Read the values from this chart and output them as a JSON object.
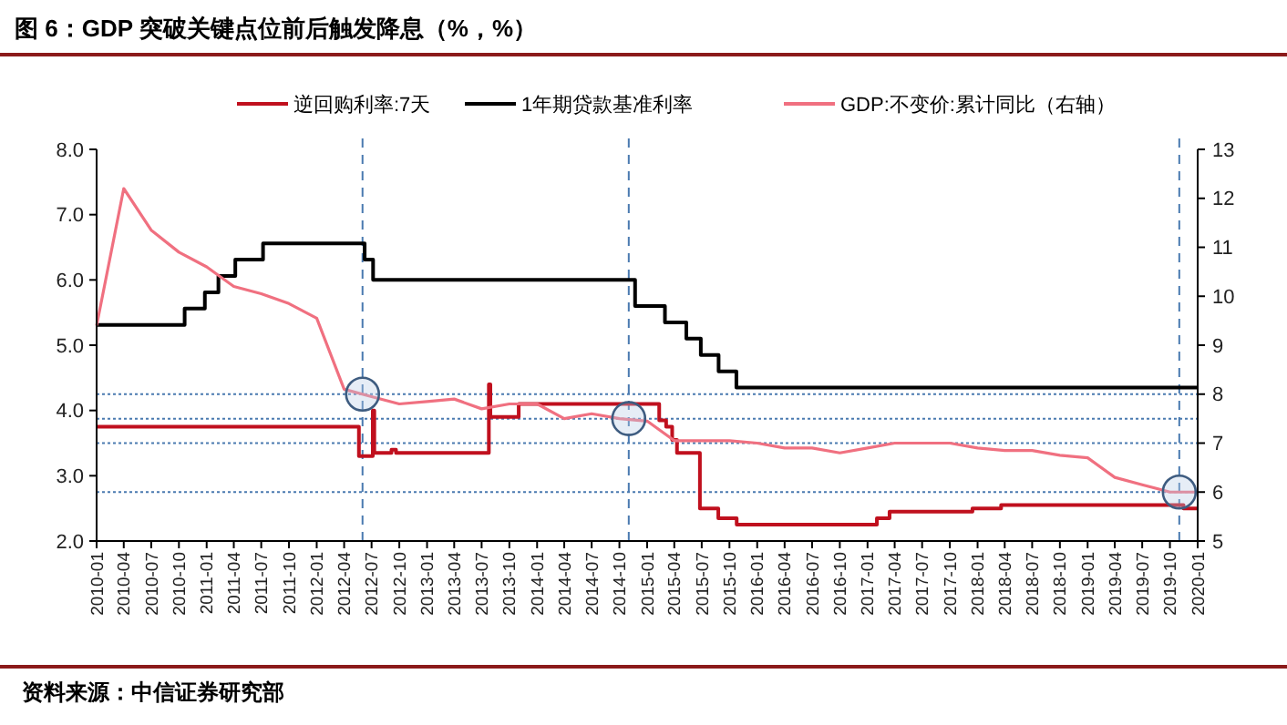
{
  "chart_data": {
    "type": "line",
    "title": "图 6：GDP 突破关键点位前后触发降息（%，%）",
    "annotations": [
      "资料来源：中信证券研究部"
    ],
    "xlim": [
      "2010-01",
      "2020-01"
    ],
    "xticks": [
      "2010-01",
      "2010-04",
      "2010-07",
      "2010-10",
      "2011-01",
      "2011-04",
      "2011-07",
      "2011-10",
      "2012-01",
      "2012-04",
      "2012-07",
      "2012-10",
      "2013-01",
      "2013-04",
      "2013-07",
      "2013-10",
      "2014-01",
      "2014-04",
      "2014-07",
      "2014-10",
      "2015-01",
      "2015-04",
      "2015-07",
      "2015-10",
      "2016-01",
      "2016-04",
      "2016-07",
      "2016-10",
      "2017-01",
      "2017-04",
      "2017-07",
      "2017-10",
      "2018-01",
      "2018-04",
      "2018-07",
      "2018-10",
      "2019-01",
      "2019-04",
      "2019-07",
      "2019-10",
      "2020-01"
    ],
    "ylim": [
      2,
      8
    ],
    "yticks": [
      {
        "value": 2,
        "label": "2.0"
      },
      {
        "value": 3,
        "label": "3.0"
      },
      {
        "value": 4,
        "label": "4.0"
      },
      {
        "value": 5,
        "label": "5.0"
      },
      {
        "value": 6,
        "label": "6.0"
      },
      {
        "value": 7,
        "label": "7.0"
      },
      {
        "value": 8,
        "label": "8.0"
      }
    ],
    "y2lim": [
      5,
      13
    ],
    "y2ticks": [
      5,
      6,
      7,
      8,
      9,
      10,
      11,
      12,
      13
    ],
    "legend": "top",
    "grid": false,
    "ref_lines": [
      {
        "axis": "x",
        "value": "2012-06",
        "color": "#4a7ab0",
        "line_style": "dashed"
      },
      {
        "axis": "x",
        "value": "2014-11",
        "color": "#4a7ab0",
        "line_style": "dashed"
      },
      {
        "axis": "x",
        "value": "2019-11",
        "color": "#4a7ab0",
        "line_style": "dashed"
      },
      {
        "axis": "y2",
        "value": 8,
        "color": "#4a7ab0",
        "line_style": "dotted"
      },
      {
        "axis": "y2",
        "value": 7.5,
        "color": "#4a7ab0",
        "line_style": "dotted"
      },
      {
        "axis": "y2",
        "value": 7,
        "color": "#4a7ab0",
        "line_style": "dotted"
      },
      {
        "axis": "y2",
        "value": 6,
        "color": "#4a7ab0",
        "line_style": "dotted"
      }
    ],
    "series": [
      {
        "name": "逆回购利率:7天",
        "color": "#c0101e",
        "type": "step",
        "x": [
          "2010-01",
          "2012-05-20",
          "2012-07-05",
          "2012-07-10",
          "2012-09-05",
          "2012-09-20",
          "2013-07-25",
          "2013-07-30",
          "2013-11-01",
          "2015-02-10",
          "2015-03-05",
          "2015-03-25",
          "2015-04-10",
          "2015-06-25",
          "2015-08-25",
          "2015-10-25",
          "2017-02-01",
          "2017-03-15",
          "2017-12-15",
          "2018-03-20",
          "2019-11-15",
          "2020-01"
        ],
        "values": [
          3.75,
          3.3,
          4.0,
          3.35,
          3.4,
          3.35,
          4.4,
          3.9,
          4.1,
          3.85,
          3.75,
          3.55,
          3.35,
          2.5,
          2.35,
          2.25,
          2.35,
          2.45,
          2.5,
          2.55,
          2.5,
          2.5
        ]
      },
      {
        "name": "1年期贷款基准利率",
        "color": "#000000",
        "type": "step",
        "x": [
          "2010-01",
          "2010-10-20",
          "2010-12-26",
          "2011-02-09",
          "2011-04-06",
          "2011-07-07",
          "2012-06-08",
          "2012-07-06",
          "2014-11-22",
          "2015-03-01",
          "2015-05-11",
          "2015-06-28",
          "2015-08-26",
          "2015-10-24",
          "2020-01"
        ],
        "values": [
          5.31,
          5.56,
          5.81,
          6.06,
          6.31,
          6.56,
          6.31,
          6.0,
          5.6,
          5.35,
          5.1,
          4.85,
          4.6,
          4.35,
          4.35
        ]
      },
      {
        "name": "GDP:不变价:累计同比（右轴）",
        "color": "#f07080",
        "type": "line",
        "axis": "y2",
        "x": [
          "2010-01",
          "2010-04",
          "2010-07",
          "2010-10",
          "2011-01",
          "2011-04",
          "2011-07",
          "2011-10",
          "2012-01",
          "2012-04",
          "2012-07",
          "2012-10",
          "2013-01",
          "2013-04",
          "2013-07",
          "2013-10",
          "2014-01",
          "2014-04",
          "2014-07",
          "2014-10",
          "2015-01",
          "2015-04",
          "2015-07",
          "2015-10",
          "2016-01",
          "2016-04",
          "2016-07",
          "2016-10",
          "2017-01",
          "2017-04",
          "2017-07",
          "2017-10",
          "2018-01",
          "2018-04",
          "2018-07",
          "2018-10",
          "2019-01",
          "2019-04",
          "2019-07",
          "2019-10",
          "2020-01"
        ],
        "values": [
          9.4,
          12.2,
          11.35,
          10.9,
          10.6,
          10.2,
          10.05,
          9.85,
          9.55,
          8.1,
          7.95,
          7.8,
          7.85,
          7.9,
          7.7,
          7.8,
          7.8,
          7.5,
          7.6,
          7.5,
          7.45,
          7.05,
          7.05,
          7.05,
          7.0,
          6.9,
          6.9,
          6.8,
          6.9,
          7.0,
          7.0,
          7.0,
          6.9,
          6.85,
          6.85,
          6.75,
          6.7,
          6.3,
          6.15,
          6.0,
          6.0
        ]
      }
    ]
  }
}
